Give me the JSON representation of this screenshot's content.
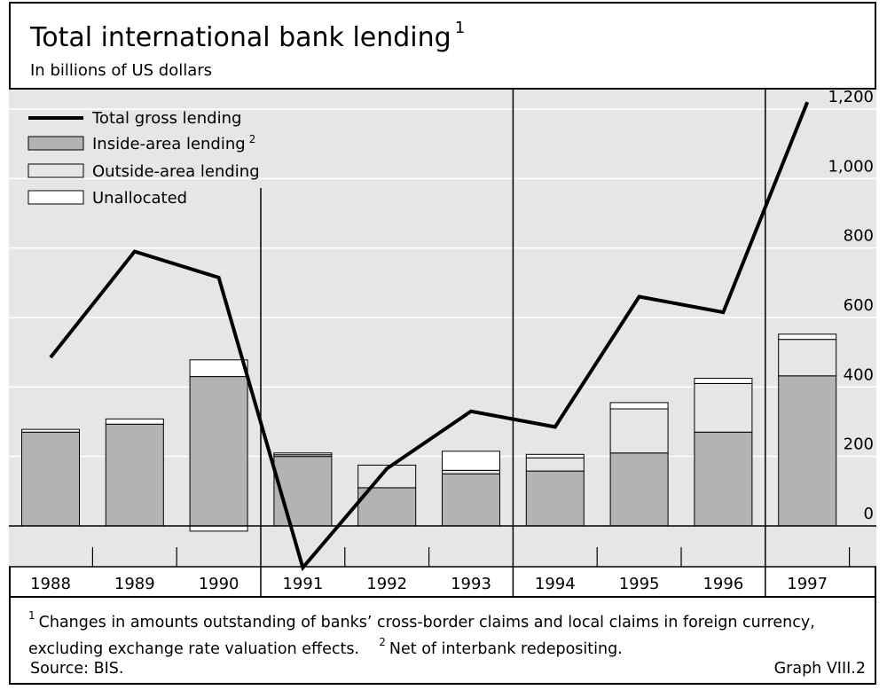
{
  "header": {
    "title": "Total international bank lending",
    "title_sup": "1",
    "subtitle": "In billions of US dollars"
  },
  "footer": {
    "note1_mark": "1",
    "note1": "Changes in amounts outstanding of banks’ cross-border claims and local claims in foreign currency, excluding exchange rate valuation effects.",
    "note2_mark": "2",
    "note2": "Net of interbank redepositing.",
    "source": "Source: BIS.",
    "graph_id": "Graph VIII.2"
  },
  "colors": {
    "background": "#e6e6e6",
    "inside": "#b3b3b3",
    "outside": "#e6e6e6",
    "unallocated": "#ffffff",
    "line": "#000000"
  },
  "chart_data": {
    "type": "bar",
    "categories": [
      "1988",
      "1989",
      "1990",
      "1991",
      "1992",
      "1993",
      "1994",
      "1995",
      "1996",
      "1997"
    ],
    "ylim": [
      -50,
      1250
    ],
    "yticks": [
      0,
      200,
      400,
      600,
      800,
      1000,
      1200
    ],
    "ytick_labels": [
      "0",
      "200",
      "400",
      "600",
      "800",
      "1,000",
      "1,200"
    ],
    "grid": true,
    "legend_placement": "top-left",
    "period_dividers_after": [
      "1990",
      "1993",
      "1996"
    ],
    "series": [
      {
        "name": "Total gross lending",
        "kind": "line",
        "values": [
          485,
          790,
          715,
          -120,
          165,
          330,
          285,
          660,
          615,
          1220
        ]
      },
      {
        "name": "Inside-area lending",
        "name_sup": "2",
        "kind": "bar",
        "values": [
          270,
          293,
          430,
          200,
          110,
          150,
          158,
          210,
          270,
          432
        ]
      },
      {
        "name": "Outside-area lending",
        "kind": "bar",
        "values": [
          0,
          0,
          0,
          5,
          65,
          10,
          38,
          127,
          140,
          105
        ]
      },
      {
        "name": "Unallocated",
        "kind": "bar",
        "values": [
          8,
          15,
          48,
          5,
          0,
          55,
          10,
          18,
          15,
          15
        ]
      }
    ],
    "negative_stub_1990": -15
  }
}
